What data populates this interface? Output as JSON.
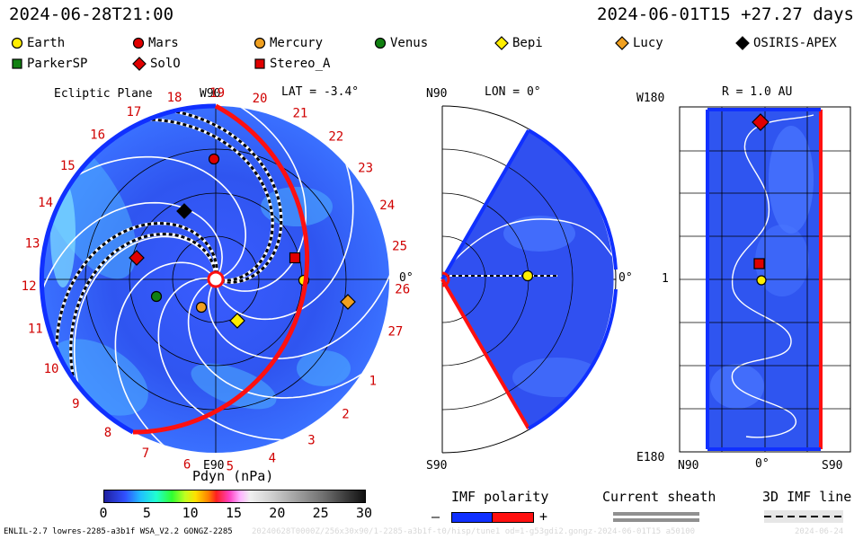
{
  "header": {
    "left_timestamp": "2024-06-28T21:00",
    "right_timestamp": "2024-06-01T15 +27.27 days"
  },
  "legend": [
    {
      "name": "Earth",
      "marker": "circle",
      "color": "#ffee00"
    },
    {
      "name": "Mars",
      "marker": "circle",
      "color": "#e00000"
    },
    {
      "name": "Mercury",
      "marker": "circle",
      "color": "#f0a020"
    },
    {
      "name": "Venus",
      "marker": "circle",
      "color": "#108010"
    },
    {
      "name": "Bepi",
      "marker": "diamond",
      "color": "#ffee00"
    },
    {
      "name": "Lucy",
      "marker": "diamond",
      "color": "#f0a020"
    },
    {
      "name": "OSIRIS-APEX",
      "marker": "diamond",
      "color": "#000000"
    },
    {
      "name": "ParkerSP",
      "marker": "square",
      "color": "#108010"
    },
    {
      "name": "SolO",
      "marker": "diamond",
      "color": "#e00000"
    },
    {
      "name": "Stereo_A",
      "marker": "square",
      "color": "#e00000"
    }
  ],
  "ecliptic": {
    "title": "Ecliptic Plane",
    "top_label": "W90",
    "lat_label": "LAT = -3.4°",
    "bottom_label": "E90",
    "right_label": "0°",
    "carrington_days": [
      "1",
      "2",
      "3",
      "4",
      "5",
      "6",
      "7",
      "8",
      "9",
      "10",
      "11",
      "12",
      "13",
      "14",
      "15",
      "16",
      "17",
      "18",
      "19",
      "20",
      "21",
      "22",
      "23",
      "24",
      "25",
      "26",
      "27"
    ]
  },
  "meridional": {
    "top_label": "N90",
    "lon_label": "LON = 0°",
    "bottom_label": "S90",
    "right_label": "0°"
  },
  "radial": {
    "r_label": "R = 1.0 AU",
    "top_left": "W180",
    "mid_left": "1",
    "bottom_left": "E180",
    "x_left": "N90",
    "x_mid": "0°",
    "x_right": "S90"
  },
  "colorbar": {
    "title": "Pdyn (nPa)",
    "ticks": [
      "0",
      "5",
      "10",
      "15",
      "20",
      "25",
      "30"
    ]
  },
  "keys": {
    "imf_title": "IMF polarity",
    "imf_minus": "–",
    "imf_plus": "+",
    "sheath_title": "Current sheath",
    "imf3d_title": "3D IMF line"
  },
  "footer": {
    "left": "ENLIL-2.7 lowres-2285-a3b1f WSA_V2.2 GONGZ-2285",
    "faded": "20240628T0000Z/256x30x90/1-2285-a3b1f-t0/hisp/tune1 od=1-g53gdi2.gongz-2024-06-01T15 a50100",
    "right": "2024-06-24"
  }
}
